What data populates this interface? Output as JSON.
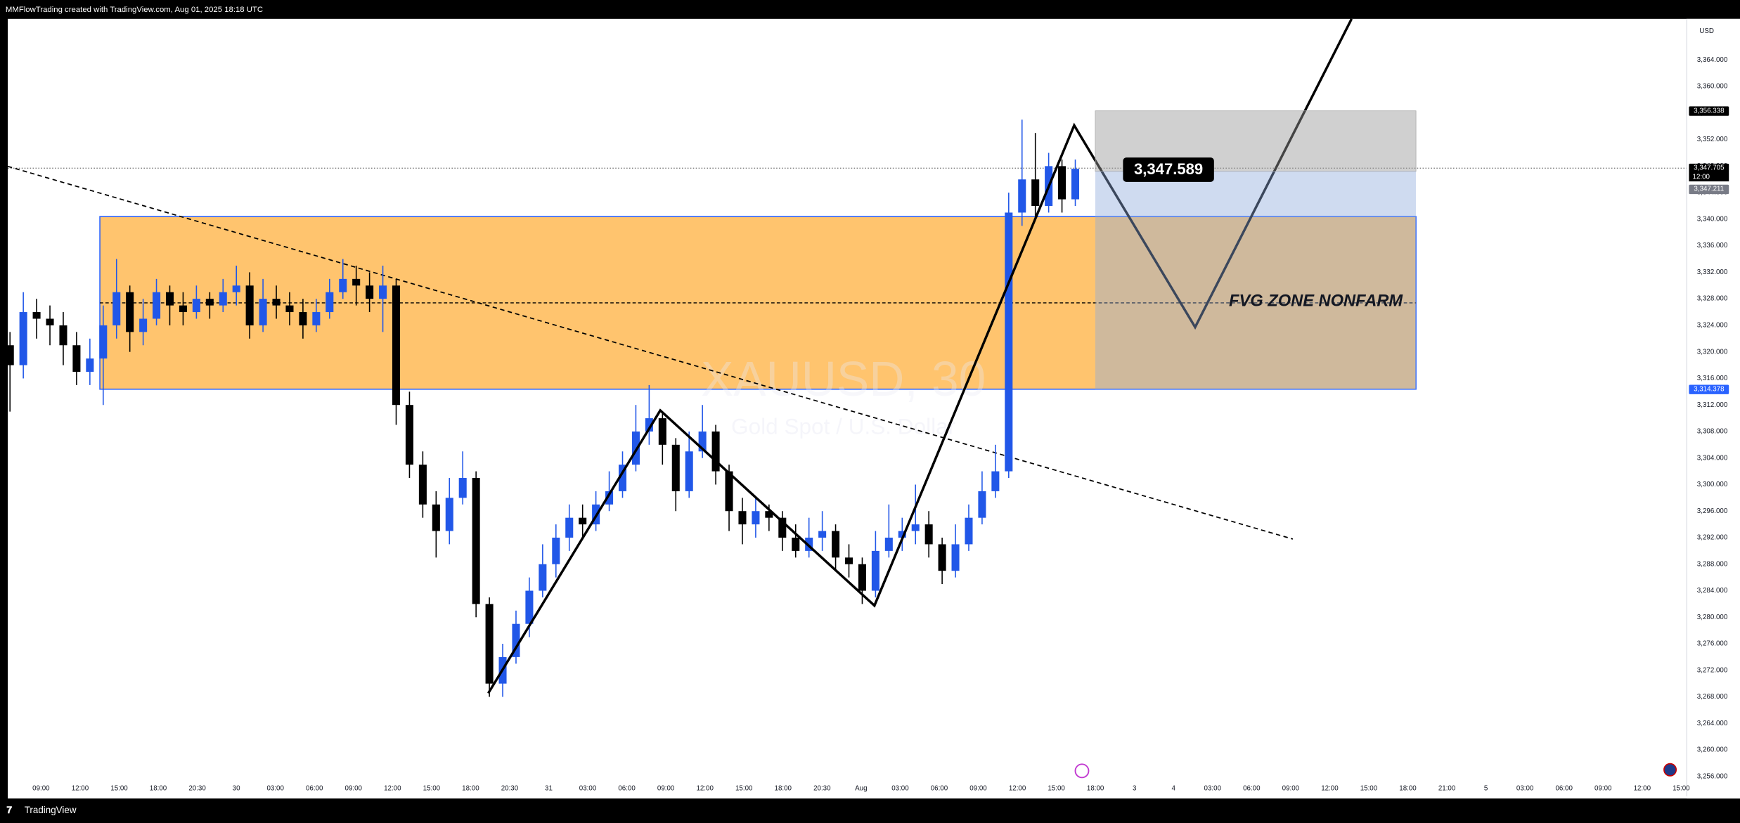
{
  "header": "MMFlowTrading created with TradingView.com, Aug 01, 2025 18:18 UTC",
  "footer": "TradingView",
  "chart_data": {
    "type": "candlestick",
    "symbol": "XAUUSD, 30",
    "description": "Gold Spot / U.S. Dollar",
    "currency": "USD",
    "up_color": "#2157e8",
    "down_color": "#000000",
    "grid": false,
    "ylim": [
      3253,
      3370.2
    ],
    "yticks": [
      {
        "value": 3256,
        "label": "3,256.000"
      },
      {
        "value": 3260,
        "label": "3,260.000"
      },
      {
        "value": 3264,
        "label": "3,264.000"
      },
      {
        "value": 3268,
        "label": "3,268.000"
      },
      {
        "value": 3272,
        "label": "3,272.000"
      },
      {
        "value": 3276,
        "label": "3,276.000"
      },
      {
        "value": 3280,
        "label": "3,280.000"
      },
      {
        "value": 3284,
        "label": "3,284.000"
      },
      {
        "value": 3288,
        "label": "3,288.000"
      },
      {
        "value": 3292,
        "label": "3,292.000"
      },
      {
        "value": 3296,
        "label": "3,296.000"
      },
      {
        "value": 3300,
        "label": "3,300.000"
      },
      {
        "value": 3304,
        "label": "3,304.000"
      },
      {
        "value": 3308,
        "label": "3,308.000"
      },
      {
        "value": 3312,
        "label": "3,312.000"
      },
      {
        "value": 3316,
        "label": "3,316.000"
      },
      {
        "value": 3320,
        "label": "3,320.000"
      },
      {
        "value": 3324,
        "label": "3,324.000"
      },
      {
        "value": 3328,
        "label": "3,328.000"
      },
      {
        "value": 3332,
        "label": "3,332.000"
      },
      {
        "value": 3336,
        "label": "3,336.000"
      },
      {
        "value": 3340,
        "label": "3,340.000"
      },
      {
        "value": 3344,
        "label": "3,344.000"
      },
      {
        "value": 3348,
        "label": "3,348.000"
      },
      {
        "value": 3352,
        "label": "3,352.000"
      },
      {
        "value": 3356,
        "label": "3,356.000"
      },
      {
        "value": 3360,
        "label": "3,360.000"
      },
      {
        "value": 3364,
        "label": "3,364.000"
      }
    ],
    "x_tick_labels": [
      "09:00",
      "12:00",
      "15:00",
      "18:00",
      "20:30",
      "30",
      "03:00",
      "06:00",
      "09:00",
      "12:00",
      "15:00",
      "18:00",
      "20:30",
      "31",
      "03:00",
      "06:00",
      "09:00",
      "12:00",
      "15:00",
      "18:00",
      "20:30",
      "Aug",
      "03:00",
      "06:00",
      "09:00",
      "12:00",
      "15:00",
      "18:00",
      "3",
      "4",
      "03:00",
      "06:00",
      "09:00",
      "12:00",
      "15:00",
      "18:00",
      "21:00",
      "5",
      "03:00",
      "06:00",
      "09:00",
      "12:00",
      "15:00"
    ],
    "open": [
      3321,
      3318,
      3326,
      3325,
      3324,
      3321,
      3317,
      3319,
      3324,
      3329,
      3323,
      3325,
      3329,
      3327,
      3326,
      3328,
      3327,
      3329,
      3330,
      3324,
      3328,
      3327,
      3326,
      3324,
      3326,
      3329,
      3331,
      3330,
      3328,
      3330,
      3312,
      3303,
      3297,
      3293,
      3298,
      3301,
      3282,
      3270,
      3274,
      3279,
      3284,
      3288,
      3292,
      3295,
      3294,
      3297,
      3299,
      3303,
      3308,
      3310,
      3306,
      3299,
      3305,
      3308,
      3302,
      3296,
      3294,
      3296,
      3295,
      3292,
      3290,
      3292,
      3293,
      3289,
      3288,
      3284,
      3290,
      3292,
      3293,
      3294,
      3291,
      3287,
      3291,
      3295,
      3299,
      3302,
      3341,
      3346,
      3342,
      3348,
      3343
    ],
    "high": [
      3323,
      3329,
      3328,
      3327,
      3326,
      3323,
      3322,
      3327,
      3334,
      3330,
      3328,
      3331,
      3330,
      3329,
      3330,
      3329,
      3331,
      3333,
      3332,
      3331,
      3330,
      3329,
      3328,
      3328,
      3331,
      3334,
      3333,
      3332,
      3333,
      3331,
      3314,
      3305,
      3299,
      3301,
      3305,
      3302,
      3283,
      3276,
      3281,
      3286,
      3291,
      3294,
      3297,
      3297,
      3299,
      3302,
      3305,
      3312,
      3315,
      3311,
      3307,
      3308,
      3312,
      3309,
      3303,
      3298,
      3298,
      3297,
      3296,
      3294,
      3295,
      3296,
      3294,
      3291,
      3289,
      3293,
      3297,
      3295,
      3300,
      3296,
      3292,
      3294,
      3297,
      3302,
      3306,
      3344,
      3355,
      3353,
      3350,
      3349,
      3349
    ],
    "low": [
      3311,
      3316,
      3322,
      3321,
      3318,
      3315,
      3315,
      3312,
      3322,
      3320,
      3321,
      3324,
      3324,
      3324,
      3325,
      3325,
      3326,
      3327,
      3322,
      3323,
      3325,
      3324,
      3322,
      3323,
      3325,
      3328,
      3327,
      3326,
      3323,
      3309,
      3301,
      3295,
      3289,
      3291,
      3297,
      3280,
      3268,
      3268,
      3273,
      3277,
      3283,
      3286,
      3290,
      3292,
      3293,
      3296,
      3298,
      3302,
      3306,
      3303,
      3296,
      3298,
      3304,
      3300,
      3293,
      3291,
      3292,
      3293,
      3290,
      3289,
      3289,
      3290,
      3287,
      3286,
      3282,
      3283,
      3289,
      3290,
      3291,
      3289,
      3285,
      3286,
      3290,
      3294,
      3298,
      3301,
      3339,
      3340,
      3341,
      3341,
      3342
    ],
    "close": [
      3318,
      3326,
      3325,
      3324,
      3321,
      3317,
      3319,
      3324,
      3329,
      3323,
      3325,
      3329,
      3327,
      3326,
      3328,
      3327,
      3329,
      3330,
      3324,
      3328,
      3327,
      3326,
      3324,
      3326,
      3329,
      3331,
      3330,
      3328,
      3330,
      3312,
      3303,
      3297,
      3293,
      3298,
      3301,
      3282,
      3270,
      3274,
      3279,
      3284,
      3288,
      3292,
      3295,
      3294,
      3297,
      3299,
      3303,
      3308,
      3310,
      3306,
      3299,
      3305,
      3308,
      3302,
      3296,
      3294,
      3296,
      3295,
      3292,
      3290,
      3292,
      3293,
      3289,
      3288,
      3284,
      3290,
      3292,
      3293,
      3294,
      3291,
      3287,
      3291,
      3295,
      3299,
      3302,
      3341,
      3346,
      3342,
      3348,
      3343,
      3347.6
    ],
    "price_labels": [
      {
        "value": 3356.338,
        "label": "3,356.338",
        "color": "#000000"
      },
      {
        "value": 3347.705,
        "label": "3,347.705",
        "color": "#000000"
      },
      {
        "value": 3347.211,
        "label": "3,347.211",
        "color": "#787b86"
      },
      {
        "value": 3314.378,
        "label": "3,314.378",
        "color": "#2962ff"
      }
    ],
    "countdown": "12:00",
    "fvg_zone_top": 3340.4,
    "price_callout": "3,347.589",
    "zone_label": "FVG ZONE NONFARM"
  }
}
